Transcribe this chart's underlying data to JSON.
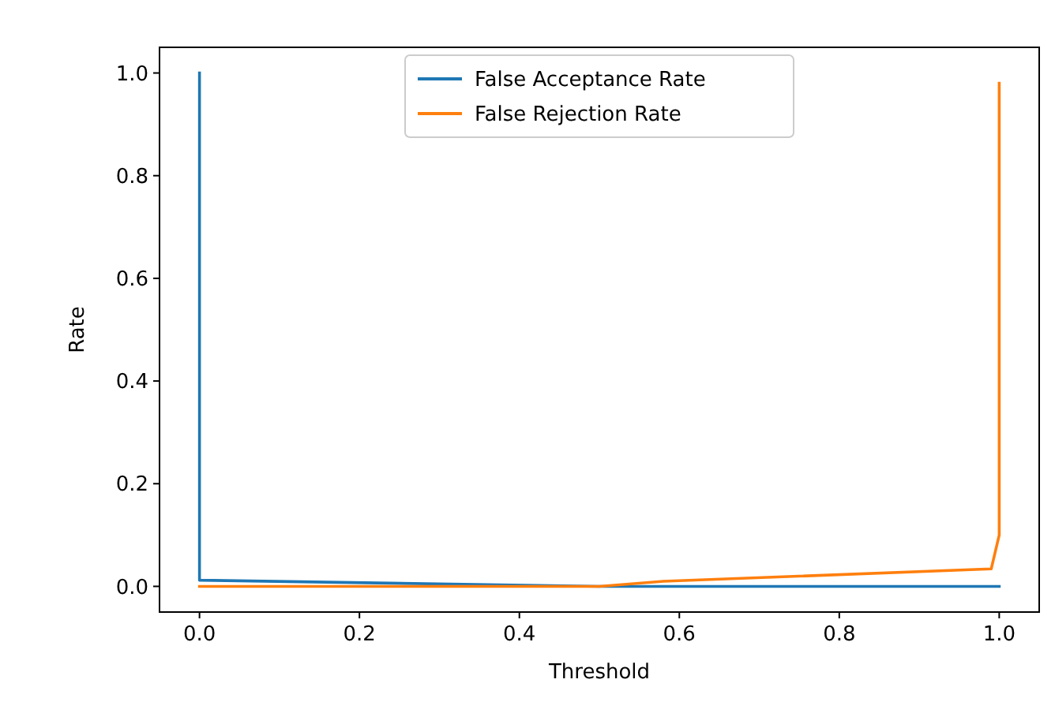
{
  "chart_data": {
    "type": "line",
    "xlabel": "Threshold",
    "ylabel": "Rate",
    "xlim": [
      -0.05,
      1.05
    ],
    "ylim": [
      -0.05,
      1.05
    ],
    "xticks": [
      {
        "value": 0,
        "label": "0.0"
      },
      0.2,
      0.4,
      0.6,
      0.8,
      {
        "value": 1,
        "label": "1.0"
      }
    ],
    "yticks": [
      {
        "value": 0,
        "label": "0.0"
      },
      0.2,
      0.4,
      0.6,
      0.8,
      {
        "value": 1,
        "label": "1.0"
      }
    ],
    "legend": "top",
    "grid": false,
    "series": [
      {
        "name": "False Acceptance Rate",
        "color": "#1f77b4",
        "x": [
          0,
          0,
          0.5,
          1
        ],
        "values": [
          1.0,
          0.012,
          0,
          0
        ]
      },
      {
        "name": "False Rejection Rate",
        "color": "#ff7f0e",
        "x": [
          0,
          0.5,
          0.58,
          0.99,
          1.0,
          1.0
        ],
        "values": [
          0,
          0,
          0.01,
          0.034,
          0.1,
          0.98
        ]
      }
    ]
  }
}
